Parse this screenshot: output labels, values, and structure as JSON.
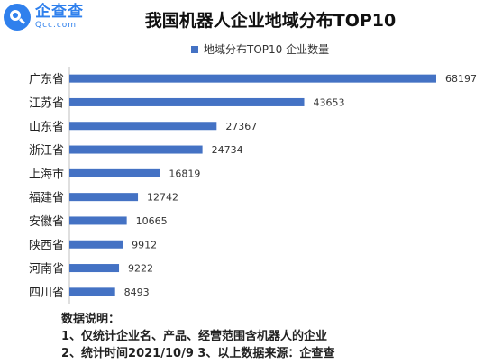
{
  "logo": {
    "name_cn": "企查查",
    "name_en": "Qcc.com",
    "icon": "magnifier-icon"
  },
  "chart_data": {
    "type": "bar",
    "orientation": "horizontal",
    "title": "我国机器人企业地域分布TOP10",
    "legend_position": "top",
    "series": [
      {
        "name": "地域分布TOP10 企业数量",
        "color": "#4472c4",
        "values": [
          68197,
          43653,
          27367,
          24734,
          16819,
          12742,
          10665,
          9912,
          9222,
          8493
        ]
      }
    ],
    "categories": [
      "广东省",
      "江苏省",
      "山东省",
      "浙江省",
      "上海市",
      "福建省",
      "安徽省",
      "陕西省",
      "河南省",
      "四川省"
    ],
    "data_labels": true,
    "grid": false,
    "xlim": [
      0,
      68197
    ]
  },
  "notes": {
    "heading": "数据说明：",
    "line1": "1、仅统计企业名、产品、经营范围含机器人的企业",
    "line2": "2、统计时间2021/10/9    3、以上数据来源：企查查"
  }
}
